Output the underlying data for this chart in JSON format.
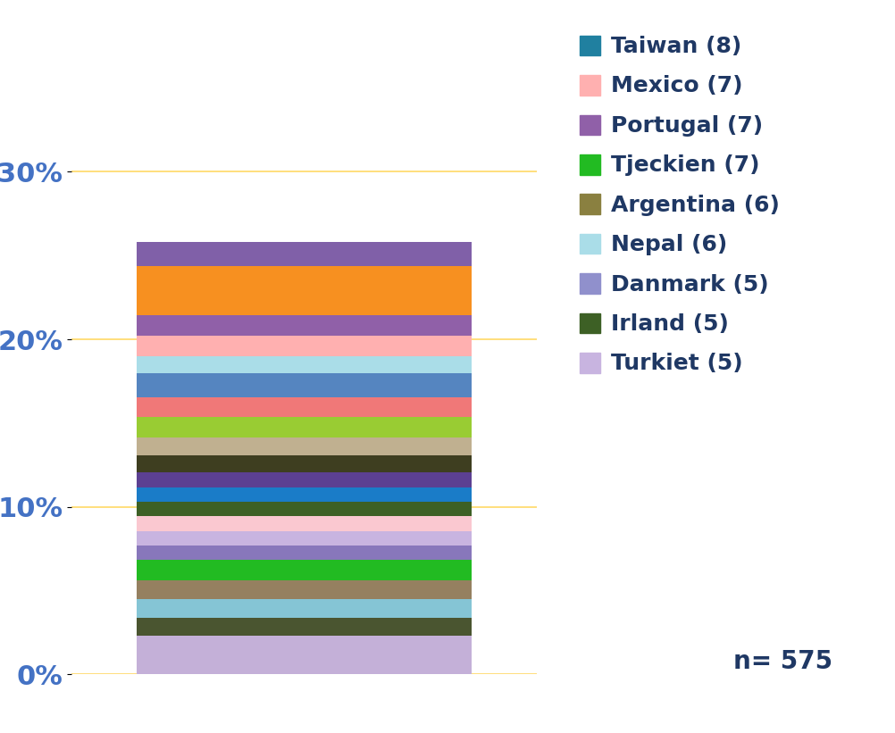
{
  "n": 575,
  "ylim": [
    0,
    0.385
  ],
  "yticks": [
    0.0,
    0.1,
    0.2,
    0.3
  ],
  "yticklabels": [
    "0%",
    "10%",
    "20%",
    "30%"
  ],
  "ytick_color": "#4472C4",
  "grid_color": "#FFD966",
  "background_color": "#FFFFFF",
  "segments_bottom_to_top": [
    {
      "value": 0.023,
      "color": "#C4B0D8"
    },
    {
      "value": 0.011,
      "color": "#4A5530"
    },
    {
      "value": 0.011,
      "color": "#85C5D5"
    },
    {
      "value": 0.011,
      "color": "#958060"
    },
    {
      "value": 0.0122,
      "color": "#22BB22"
    },
    {
      "value": 0.0087,
      "color": "#8877BB"
    },
    {
      "value": 0.0087,
      "color": "#C8B4E0"
    },
    {
      "value": 0.0087,
      "color": "#FAC8D0"
    },
    {
      "value": 0.0087,
      "color": "#3D6025"
    },
    {
      "value": 0.0087,
      "color": "#1A7CC8"
    },
    {
      "value": 0.0087,
      "color": "#5C4092"
    },
    {
      "value": 0.0104,
      "color": "#3E3E20"
    },
    {
      "value": 0.0104,
      "color": "#C0B090"
    },
    {
      "value": 0.0122,
      "color": "#99CC33"
    },
    {
      "value": 0.0122,
      "color": "#F07878"
    },
    {
      "value": 0.0139,
      "color": "#5585C0"
    },
    {
      "value": 0.0104,
      "color": "#AADDE8"
    },
    {
      "value": 0.0122,
      "color": "#FFB0B0"
    },
    {
      "value": 0.0122,
      "color": "#9060A8"
    },
    {
      "value": 0.0296,
      "color": "#F79020"
    },
    {
      "value": 0.014,
      "color": "#8060A8"
    }
  ],
  "legend_items": [
    {
      "label": "Taiwan (8)",
      "color": "#2080A0"
    },
    {
      "label": "Mexico (7)",
      "color": "#FFB0B0"
    },
    {
      "label": "Portugal (7)",
      "color": "#9060A8"
    },
    {
      "label": "Tjeckien (7)",
      "color": "#22BB22"
    },
    {
      "label": "Argentina (6)",
      "color": "#8A8040"
    },
    {
      "label": "Nepal (6)",
      "color": "#AADDE8"
    },
    {
      "label": "Danmark (5)",
      "color": "#9090CC"
    },
    {
      "label": "Irland (5)",
      "color": "#3D6025"
    },
    {
      "label": "Turkiet (5)",
      "color": "#C8B4E0"
    }
  ],
  "text_color": "#1F3864"
}
